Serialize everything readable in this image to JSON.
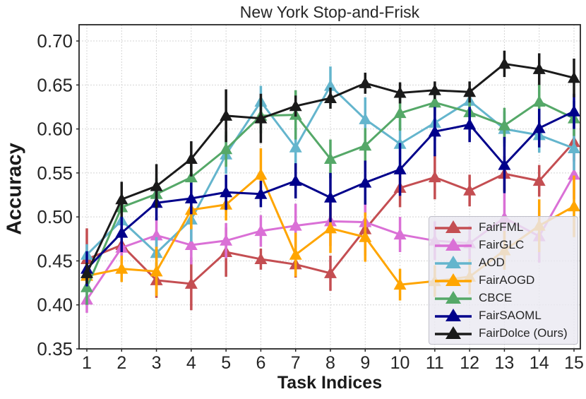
{
  "chart_data": {
    "type": "line",
    "title": "New York Stop-and-Frisk",
    "xlabel": "Task Indices",
    "ylabel": "Accuracy",
    "x": [
      1,
      2,
      3,
      4,
      5,
      6,
      7,
      8,
      9,
      10,
      11,
      12,
      13,
      14,
      15
    ],
    "xtick_labels": [
      "1",
      "2",
      "3",
      "4",
      "5",
      "6",
      "7",
      "8",
      "9",
      "10",
      "11",
      "12",
      "13",
      "14",
      "15"
    ],
    "ylim": [
      0.35,
      0.7185
    ],
    "yticks": [
      0.7,
      0.65,
      0.6,
      0.55,
      0.5,
      0.45,
      0.4,
      0.35
    ],
    "ytick_labels": [
      "0.70",
      "0.65",
      "0.60",
      "0.55",
      "0.50",
      "0.45",
      "0.40",
      "0.35"
    ],
    "grid": true,
    "grid_color": "#d4d4d4",
    "spine_color": "#262626",
    "legend_position": "lower right",
    "series": [
      {
        "name": "FairFML",
        "color": "#C44E52",
        "values": [
          0.452,
          0.468,
          0.428,
          0.424,
          0.46,
          0.452,
          0.446,
          0.436,
          0.486,
          0.533,
          0.545,
          0.53,
          0.549,
          0.541,
          0.585
        ],
        "errors": [
          0.035,
          0.02,
          0.02,
          0.03,
          0.028,
          0.012,
          0.015,
          0.02,
          0.03,
          0.022,
          0.025,
          0.018,
          0.02,
          0.018,
          0.022
        ]
      },
      {
        "name": "FairGLC",
        "color": "#DA70D6",
        "values": [
          0.406,
          0.465,
          0.479,
          0.468,
          0.473,
          0.484,
          0.49,
          0.495,
          0.494,
          0.48,
          0.473,
          0.47,
          0.499,
          0.478,
          0.548
        ],
        "errors": [
          0.015,
          0.018,
          0.02,
          0.022,
          0.02,
          0.018,
          0.025,
          0.028,
          0.022,
          0.02,
          0.022,
          0.02,
          0.028,
          0.03,
          0.028
        ]
      },
      {
        "name": "AOD",
        "color": "#64B5CD",
        "values": [
          0.457,
          0.496,
          0.459,
          0.497,
          0.571,
          0.631,
          0.579,
          0.649,
          0.611,
          0.583,
          0.607,
          0.632,
          0.6,
          0.593,
          0.578
        ],
        "errors": [
          0.012,
          0.02,
          0.018,
          0.025,
          0.022,
          0.018,
          0.025,
          0.022,
          0.025,
          0.028,
          0.02,
          0.015,
          0.02,
          0.02,
          0.025
        ]
      },
      {
        "name": "FairAOGD",
        "color": "#FFA500",
        "values": [
          0.433,
          0.441,
          0.438,
          0.508,
          0.514,
          0.548,
          0.457,
          0.487,
          0.477,
          0.423,
          0.427,
          0.432,
          0.462,
          0.49,
          0.512
        ],
        "errors": [
          0.015,
          0.015,
          0.028,
          0.022,
          0.018,
          0.03,
          0.025,
          0.028,
          0.028,
          0.018,
          0.018,
          0.02,
          0.022,
          0.03,
          0.035
        ]
      },
      {
        "name": "CBCE",
        "color": "#55A868",
        "values": [
          0.42,
          0.511,
          0.526,
          0.545,
          0.577,
          0.615,
          0.616,
          0.566,
          0.581,
          0.618,
          0.63,
          0.619,
          0.604,
          0.631,
          0.612
        ],
        "errors": [
          0.02,
          0.015,
          0.018,
          0.015,
          0.02,
          0.02,
          0.028,
          0.022,
          0.02,
          0.02,
          0.015,
          0.02,
          0.02,
          0.02,
          0.02
        ]
      },
      {
        "name": "FairSAOML",
        "color": "#00008B",
        "values": [
          0.441,
          0.482,
          0.516,
          0.521,
          0.528,
          0.526,
          0.541,
          0.522,
          0.539,
          0.554,
          0.597,
          0.605,
          0.559,
          0.601,
          0.62
        ],
        "errors": [
          0.02,
          0.022,
          0.02,
          0.018,
          0.02,
          0.015,
          0.02,
          0.028,
          0.025,
          0.03,
          0.028,
          0.02,
          0.032,
          0.022,
          0.02
        ]
      },
      {
        "name": "FairDolce (Ours)",
        "color": "#1A1A1A",
        "values": [
          0.436,
          0.52,
          0.535,
          0.566,
          0.615,
          0.612,
          0.626,
          0.635,
          0.652,
          0.641,
          0.644,
          0.642,
          0.674,
          0.668,
          0.658
        ],
        "errors": [
          0.012,
          0.02,
          0.025,
          0.02,
          0.03,
          0.028,
          0.012,
          0.012,
          0.012,
          0.012,
          0.01,
          0.012,
          0.015,
          0.018,
          0.022
        ]
      }
    ]
  }
}
